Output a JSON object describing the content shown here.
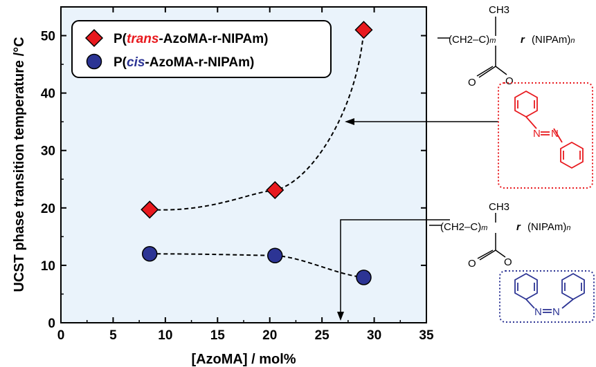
{
  "chart_data": {
    "type": "scatter",
    "xlabel": "[AzoMA] / mol%",
    "ylabel": "UCST phase transition temperature /°C",
    "xlim": [
      0,
      35
    ],
    "ylim": [
      0,
      55
    ],
    "x_ticks": [
      "0",
      "5",
      "10",
      "15",
      "20",
      "25",
      "30",
      "35"
    ],
    "y_ticks": [
      "0",
      "10",
      "20",
      "30",
      "40",
      "50"
    ],
    "grid": false,
    "legend_position": "top-left",
    "series": [
      {
        "name_prefix": "P(",
        "name_isomer": "trans",
        "name_suffix": "-AzoMA-r-NIPAm)",
        "marker": "diamond",
        "color": "#e8191e",
        "x": [
          8.5,
          20.5,
          29
        ],
        "y": [
          19.7,
          23.1,
          51.0
        ]
      },
      {
        "name_prefix": "P(",
        "name_isomer": "cis",
        "name_suffix": "-AzoMA-r-NIPAm)",
        "marker": "circle",
        "color": "#2c3494",
        "x": [
          8.5,
          20.5,
          29
        ],
        "y": [
          12.0,
          11.7,
          7.9
        ]
      }
    ],
    "plot_background": "#eaf3fb"
  },
  "structures": {
    "methyl": "CH3",
    "ch2": "CH2",
    "c": "C",
    "sub_m": "m",
    "sub_n": "n",
    "r": "r",
    "nipam": "(NIPAm)",
    "o": "O",
    "n_label": "N",
    "trans_color": "#e8191e",
    "cis_color": "#2c3494"
  }
}
